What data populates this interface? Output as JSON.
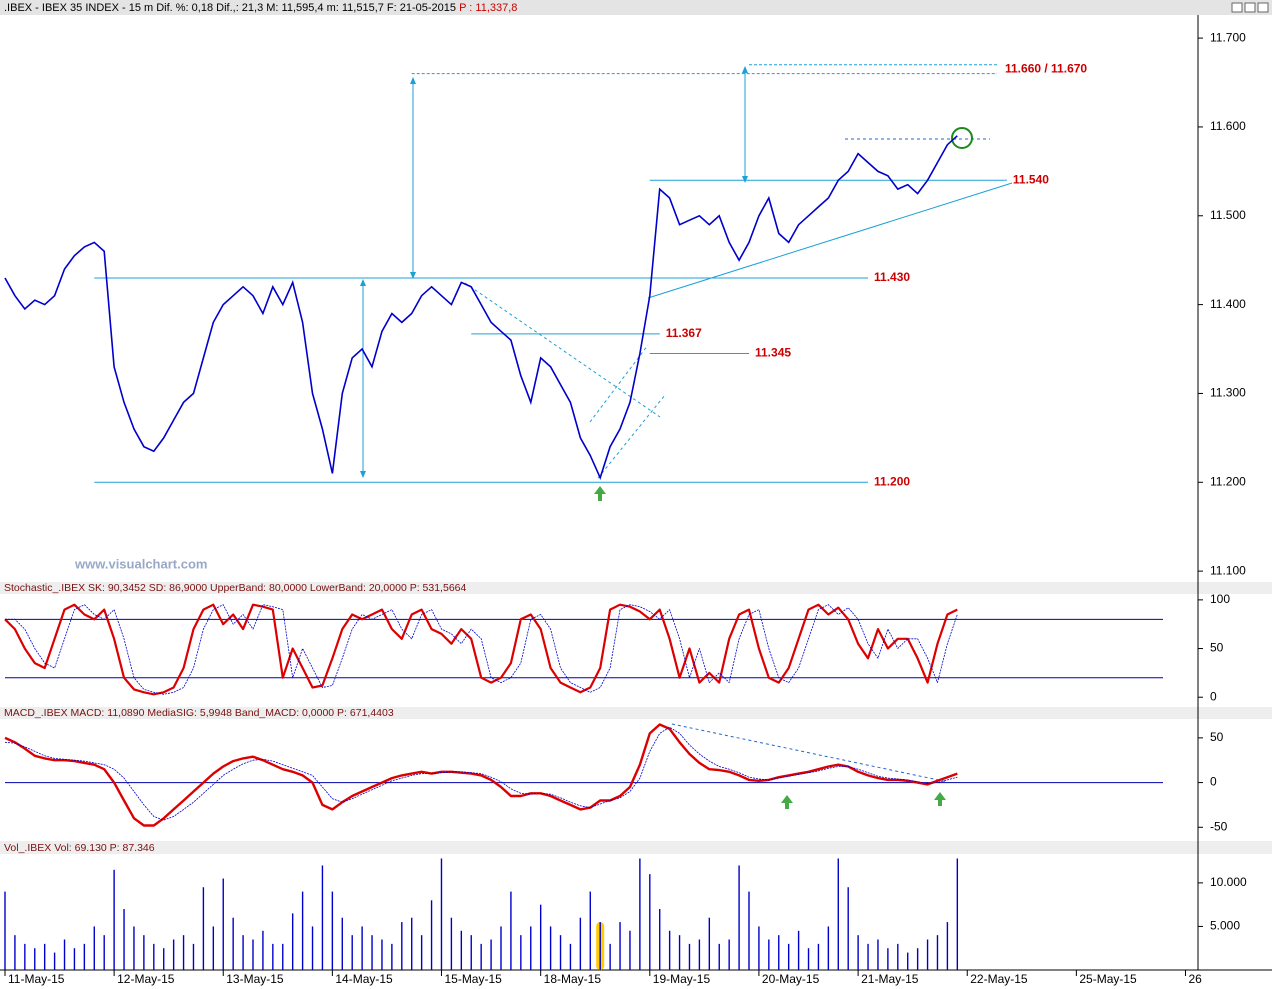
{
  "header": {
    "title": ".IBEX - IBEX 35 INDEX -  15 m Dif. %: 0,18 Dif.,: 21,3 M: 11,595,4 m: 11,515,7 F: 21-05-2015",
    "price": "P : 11,337,8"
  },
  "watermark": "www.visualchart.com",
  "x_axis": {
    "categories": [
      "11-May-15",
      null,
      null,
      null,
      null,
      null,
      null,
      null,
      null,
      null,
      null,
      "12-May-15",
      null,
      null,
      null,
      null,
      null,
      null,
      null,
      null,
      null,
      null,
      "13-May-15",
      null,
      null,
      null,
      null,
      null,
      null,
      null,
      null,
      null,
      null,
      "14-May-15",
      null,
      null,
      null,
      null,
      null,
      null,
      null,
      null,
      null,
      null,
      "15-May-15",
      null,
      null,
      null,
      null,
      null,
      null,
      null,
      null,
      null,
      "18-May-15",
      null,
      null,
      null,
      null,
      null,
      null,
      null,
      null,
      null,
      null,
      "19-May-15",
      null,
      null,
      null,
      null,
      null,
      null,
      null,
      null,
      null,
      null,
      "20-May-15",
      null,
      null,
      null,
      null,
      null,
      null,
      null,
      null,
      null,
      "21-May-15",
      null,
      null,
      null,
      null,
      null,
      null,
      null,
      null,
      null,
      null,
      "22-May-15",
      null,
      null,
      null,
      null,
      null,
      null,
      null,
      null,
      null,
      null,
      "25-May-15",
      null,
      null,
      null,
      null,
      null,
      null,
      null,
      null,
      null,
      null,
      "26"
    ]
  },
  "chart_data": [
    {
      "type": "line",
      "color": "#0000cc",
      "values": [
        11430,
        11410,
        11395,
        11405,
        11400,
        11410,
        11440,
        11455,
        11465,
        11470,
        11460,
        11330,
        11290,
        11260,
        11240,
        11235,
        11250,
        11270,
        11290,
        11300,
        11340,
        11380,
        11400,
        11410,
        11420,
        11410,
        11390,
        11420,
        11400,
        11425,
        11380,
        11300,
        11260,
        11210,
        11300,
        11340,
        11350,
        11330,
        11370,
        11390,
        11380,
        11390,
        11410,
        11420,
        11410,
        11400,
        11425,
        11420,
        11400,
        11380,
        11370,
        11360,
        11320,
        11290,
        11340,
        11330,
        11310,
        11290,
        11250,
        11230,
        11205,
        11240,
        11260,
        11290,
        11345,
        11410,
        11530,
        11520,
        11490,
        11495,
        11500,
        11490,
        11500,
        11470,
        11450,
        11470,
        11500,
        11520,
        11480,
        11470,
        11490,
        11500,
        11510,
        11520,
        11540,
        11550,
        11570,
        11560,
        11550,
        11545,
        11530,
        11535,
        11525,
        11540,
        11560,
        11580,
        11590
      ],
      "ylim": [
        11090,
        11726
      ],
      "yticks": [
        {
          "value": 11100,
          "label": "11.100"
        },
        {
          "value": 11200,
          "label": "11.200"
        },
        {
          "value": 11300,
          "label": "11.300"
        },
        {
          "value": 11400,
          "label": "11.400"
        },
        {
          "value": 11500,
          "label": "11.500"
        },
        {
          "value": 11600,
          "label": "11.600"
        },
        {
          "value": 11700,
          "label": "11.700"
        }
      ],
      "annotation_color": "#1ba0d8",
      "annotations": [
        {
          "value": 11430,
          "label": "11.430"
        },
        {
          "value": 11200,
          "label": "11.200"
        },
        {
          "value": 11367,
          "label": "11.367"
        },
        {
          "value": 11345,
          "label": "11.345"
        },
        {
          "value": 11540,
          "label": "11.540"
        },
        {
          "values": [
            11660,
            11670
          ],
          "label": "11.660 / 11.670"
        }
      ]
    },
    {
      "type": "line",
      "title": "Stochastic_.IBEX SK: 90,3452 SD: 86,9000 UpperBand: 80,0000 LowerBand: 20,0000 P: 531,5664",
      "ylim": [
        -8,
        105
      ],
      "yticks": [
        0,
        50,
        100
      ],
      "bands": [
        80,
        20
      ],
      "band_color": "#0000aa",
      "series": [
        {
          "color": "#dd0000",
          "width": 2.2,
          "values": [
            80,
            70,
            50,
            35,
            30,
            60,
            90,
            95,
            85,
            80,
            90,
            60,
            20,
            8,
            5,
            3,
            5,
            10,
            30,
            70,
            90,
            95,
            75,
            85,
            70,
            95,
            93,
            90,
            20,
            50,
            30,
            10,
            12,
            40,
            70,
            85,
            80,
            85,
            90,
            70,
            60,
            85,
            90,
            70,
            65,
            55,
            70,
            60,
            20,
            15,
            20,
            35,
            80,
            85,
            70,
            30,
            15,
            10,
            5,
            10,
            30,
            90,
            95,
            93,
            88,
            80,
            90,
            60,
            20,
            50,
            15,
            25,
            15,
            60,
            85,
            90,
            50,
            20,
            15,
            30,
            60,
            90,
            95,
            85,
            92,
            80,
            55,
            40,
            70,
            50,
            60,
            60,
            40,
            15,
            55,
            85,
            90
          ]
        },
        {
          "color": "#0000cc",
          "width": 0.8,
          "dash": true,
          "values": [
            80,
            80,
            70,
            50,
            35,
            30,
            60,
            90,
            95,
            85,
            80,
            90,
            60,
            20,
            8,
            5,
            3,
            5,
            10,
            30,
            70,
            90,
            95,
            75,
            85,
            70,
            95,
            93,
            90,
            20,
            50,
            30,
            10,
            12,
            40,
            70,
            85,
            80,
            85,
            90,
            70,
            60,
            85,
            90,
            70,
            65,
            55,
            70,
            60,
            20,
            15,
            20,
            35,
            80,
            85,
            70,
            30,
            15,
            10,
            5,
            10,
            30,
            90,
            95,
            93,
            88,
            80,
            90,
            60,
            20,
            50,
            15,
            25,
            15,
            60,
            85,
            90,
            50,
            20,
            15,
            30,
            60,
            90,
            95,
            85,
            92,
            80,
            55,
            40,
            70,
            50,
            60,
            60,
            40,
            15,
            55,
            85
          ]
        }
      ]
    },
    {
      "type": "line",
      "title": "MACD_.IBEX MACD: 11,0890 MediaSIG: 5,9948 Band_MACD: 0,0000 P: 671,4403",
      "ylim": [
        -62,
        70
      ],
      "yticks": [
        -50,
        0,
        50
      ],
      "bands": [
        0
      ],
      "band_color": "#0000aa",
      "series": [
        {
          "color": "#dd0000",
          "width": 2.4,
          "values": [
            50,
            45,
            38,
            30,
            27,
            25,
            25,
            24,
            22,
            20,
            15,
            0,
            -20,
            -40,
            -48,
            -48,
            -40,
            -30,
            -20,
            -10,
            0,
            10,
            18,
            24,
            27,
            29,
            25,
            20,
            15,
            12,
            8,
            0,
            -25,
            -30,
            -22,
            -15,
            -10,
            -5,
            0,
            5,
            8,
            10,
            12,
            10,
            12,
            12,
            11,
            10,
            8,
            3,
            -5,
            -15,
            -15,
            -12,
            -12,
            -15,
            -20,
            -25,
            -30,
            -28,
            -20,
            -20,
            -15,
            -5,
            20,
            55,
            65,
            60,
            45,
            32,
            22,
            15,
            14,
            12,
            8,
            3,
            2,
            3,
            6,
            8,
            10,
            12,
            15,
            18,
            20,
            18,
            12,
            8,
            5,
            3,
            3,
            2,
            0,
            -2,
            2,
            6,
            10
          ]
        },
        {
          "color": "#0000cc",
          "width": 0.8,
          "dash": true,
          "values": [
            45,
            44,
            40,
            35,
            30,
            27,
            26,
            25,
            24,
            22,
            20,
            15,
            5,
            -10,
            -25,
            -38,
            -42,
            -38,
            -30,
            -22,
            -12,
            -2,
            8,
            15,
            21,
            25,
            26,
            24,
            20,
            16,
            12,
            8,
            -5,
            -18,
            -22,
            -18,
            -13,
            -8,
            -3,
            2,
            5,
            8,
            10,
            10,
            11,
            12,
            12,
            11,
            10,
            6,
            1,
            -7,
            -12,
            -13,
            -12,
            -13,
            -17,
            -22,
            -26,
            -28,
            -24,
            -20,
            -17,
            -10,
            5,
            35,
            55,
            62,
            55,
            42,
            32,
            24,
            18,
            15,
            11,
            6,
            4,
            3,
            5,
            7,
            9,
            11,
            13,
            16,
            18,
            18,
            15,
            11,
            7,
            5,
            4,
            3,
            1,
            -1,
            0,
            3,
            6
          ]
        }
      ]
    },
    {
      "type": "bar",
      "title": "Vol_.IBEX Vol: 69.130 P: 87.346",
      "color": "#0000cc",
      "highlights": [
        60
      ],
      "highlight_color": "#ffcc00",
      "ylim": [
        0,
        13200
      ],
      "yticks": [
        {
          "value": 5000,
          "label": "5.000"
        },
        {
          "value": 10000,
          "label": "10.000"
        }
      ],
      "values": [
        9000,
        4000,
        3000,
        2500,
        3000,
        2000,
        3500,
        2500,
        3000,
        5000,
        4000,
        11500,
        7000,
        5000,
        4000,
        3000,
        2500,
        3500,
        4000,
        3000,
        9500,
        5000,
        10500,
        6000,
        4000,
        3500,
        4500,
        3000,
        3000,
        6500,
        9000,
        5000,
        12000,
        9000,
        6000,
        4000,
        5000,
        4000,
        3500,
        3000,
        5500,
        6000,
        4000,
        8000,
        12800,
        6000,
        4500,
        4000,
        3000,
        3500,
        5000,
        9000,
        4000,
        5000,
        7500,
        5000,
        4000,
        3000,
        6000,
        9000,
        5500,
        3000,
        5500,
        4500,
        12800,
        11000,
        7000,
        4500,
        4000,
        3000,
        3500,
        6000,
        3000,
        3500,
        12000,
        9000,
        5000,
        3500,
        4000,
        3000,
        4500,
        2500,
        3000,
        5000,
        12800,
        9500,
        4000,
        3000,
        3500,
        2500,
        3000,
        2000,
        2500,
        3500,
        4000,
        5500,
        12800
      ]
    }
  ]
}
